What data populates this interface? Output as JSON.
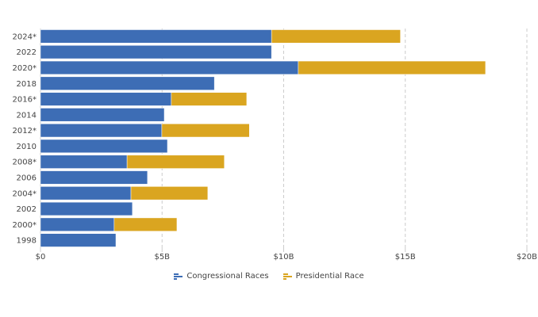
{
  "chart_data": {
    "type": "bar",
    "orientation": "horizontal",
    "stacked": true,
    "categories": [
      "2024*",
      "2022",
      "2020*",
      "2018",
      "2016*",
      "2014",
      "2012*",
      "2010",
      "2008*",
      "2006",
      "2004*",
      "2002",
      "2000*",
      "1998"
    ],
    "series": [
      {
        "name": "Congressional Races",
        "color": "#3d6db5",
        "values": [
          9.5,
          9.5,
          10.6,
          7.15,
          5.38,
          5.09,
          4.99,
          5.22,
          3.56,
          4.4,
          3.72,
          3.78,
          3.03,
          3.1
        ]
      },
      {
        "name": "Presidential Race",
        "color": "#daa520",
        "values": [
          5.3,
          0,
          7.7,
          0,
          3.1,
          0,
          3.6,
          0,
          4.0,
          0,
          3.16,
          0,
          2.58,
          0
        ]
      }
    ],
    "xlim": [
      0,
      20
    ],
    "x_ticks": [
      0,
      5,
      10,
      15,
      20
    ],
    "x_tick_labels": [
      "$0",
      "$5B",
      "$10B",
      "$15B",
      "$20B"
    ],
    "grid": "vertical dashed",
    "legend": "bottom-center",
    "xlabel": "",
    "ylabel": ""
  }
}
